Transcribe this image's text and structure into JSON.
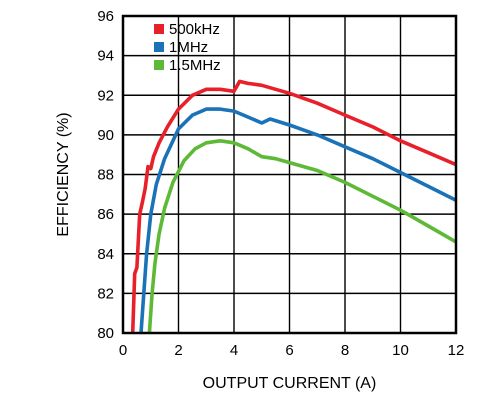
{
  "chart_data": {
    "type": "line",
    "title": "",
    "xlabel": "OUTPUT CURRENT (A)",
    "ylabel": "EFFICIENCY (%)",
    "xlim": [
      0,
      12
    ],
    "ylim": [
      80,
      96
    ],
    "xticks": [
      0,
      2,
      4,
      6,
      8,
      10,
      12
    ],
    "yticks": [
      80,
      82,
      84,
      86,
      88,
      90,
      92,
      94,
      96
    ],
    "grid": true,
    "legend_position": "top-left",
    "series": [
      {
        "name": "500kHz",
        "color": "#e8202a",
        "x": [
          0.35,
          0.42,
          0.5,
          0.6,
          0.7,
          0.8,
          0.9,
          1.0,
          1.1,
          1.3,
          1.6,
          2.0,
          2.5,
          3.0,
          3.5,
          4.0,
          4.2,
          4.5,
          5.0,
          6.0,
          7.0,
          8.0,
          9.0,
          10.0,
          11.0,
          12.0
        ],
        "values": [
          80.0,
          83.0,
          83.3,
          86.0,
          86.6,
          87.3,
          88.4,
          88.3,
          88.9,
          89.6,
          90.4,
          91.3,
          92.0,
          92.3,
          92.3,
          92.2,
          92.7,
          92.6,
          92.5,
          92.1,
          91.6,
          91.0,
          90.4,
          89.7,
          89.1,
          88.5
        ]
      },
      {
        "name": "1MHz",
        "color": "#1a73b8",
        "x": [
          0.65,
          0.75,
          0.85,
          1.0,
          1.2,
          1.5,
          2.0,
          2.5,
          3.0,
          3.5,
          4.0,
          4.5,
          5.0,
          5.3,
          6.0,
          7.0,
          8.0,
          9.0,
          10.0,
          11.0,
          12.0
        ],
        "values": [
          80.0,
          82.0,
          84.0,
          86.0,
          87.5,
          88.8,
          90.3,
          91.0,
          91.3,
          91.3,
          91.2,
          90.9,
          90.6,
          90.8,
          90.5,
          90.0,
          89.4,
          88.8,
          88.1,
          87.4,
          86.7
        ]
      },
      {
        "name": "1.5MHz",
        "color": "#5db936",
        "x": [
          0.95,
          1.05,
          1.15,
          1.3,
          1.5,
          1.8,
          2.2,
          2.6,
          3.0,
          3.5,
          4.0,
          4.5,
          5.0,
          5.5,
          6.0,
          7.0,
          8.0,
          9.0,
          10.0,
          11.0,
          12.0
        ],
        "values": [
          80.0,
          82.0,
          83.5,
          85.0,
          86.3,
          87.6,
          88.7,
          89.3,
          89.6,
          89.7,
          89.6,
          89.3,
          88.9,
          88.8,
          88.6,
          88.2,
          87.6,
          86.9,
          86.2,
          85.4,
          84.6
        ]
      }
    ]
  }
}
